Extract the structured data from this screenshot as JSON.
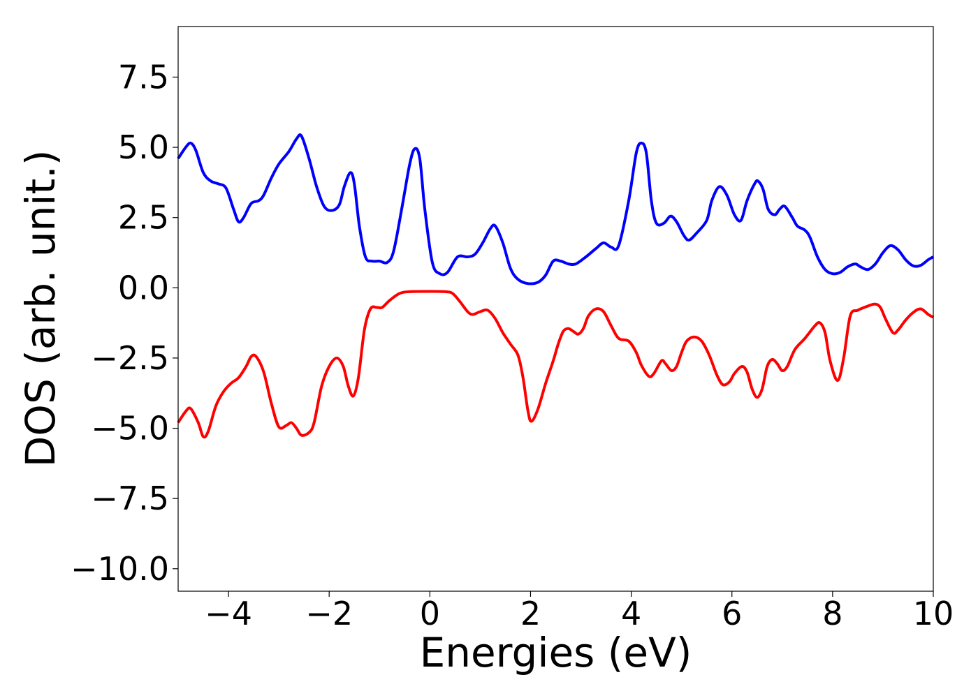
{
  "chart_data": {
    "type": "line",
    "title": "",
    "xlabel": "Energies (eV)",
    "ylabel": "DOS (arb. unit.)",
    "xlim": [
      -5,
      10
    ],
    "ylim": [
      -10.8,
      9.3
    ],
    "xticks": [
      -4,
      -2,
      0,
      2,
      4,
      6,
      8,
      10
    ],
    "xtick_labels": [
      "−4",
      "−2",
      "0",
      "2",
      "4",
      "6",
      "8",
      "10"
    ],
    "yticks": [
      7.5,
      5.0,
      2.5,
      0.0,
      -2.5,
      -5.0,
      -7.5,
      -10.0
    ],
    "ytick_labels": [
      "7.5",
      "5.0",
      "2.5",
      "0.0",
      "−2.5",
      "−5.0",
      "−7.5",
      "−10.0"
    ],
    "grid": false,
    "legend": "none",
    "series": [
      {
        "color": "#0000ff",
        "points": [
          [
            -5.0,
            4.6
          ],
          [
            -4.85,
            5.0
          ],
          [
            -4.75,
            5.15
          ],
          [
            -4.65,
            4.9
          ],
          [
            -4.5,
            4.1
          ],
          [
            -4.35,
            3.8
          ],
          [
            -4.2,
            3.7
          ],
          [
            -4.05,
            3.55
          ],
          [
            -3.9,
            2.8
          ],
          [
            -3.8,
            2.35
          ],
          [
            -3.7,
            2.5
          ],
          [
            -3.55,
            3.0
          ],
          [
            -3.4,
            3.1
          ],
          [
            -3.3,
            3.3
          ],
          [
            -3.15,
            3.9
          ],
          [
            -3.0,
            4.4
          ],
          [
            -2.8,
            4.85
          ],
          [
            -2.65,
            5.3
          ],
          [
            -2.55,
            5.4
          ],
          [
            -2.4,
            4.6
          ],
          [
            -2.25,
            3.6
          ],
          [
            -2.1,
            2.9
          ],
          [
            -1.95,
            2.75
          ],
          [
            -1.8,
            2.95
          ],
          [
            -1.7,
            3.6
          ],
          [
            -1.58,
            4.1
          ],
          [
            -1.5,
            3.7
          ],
          [
            -1.4,
            2.2
          ],
          [
            -1.28,
            1.1
          ],
          [
            -1.15,
            0.95
          ],
          [
            -1.0,
            0.95
          ],
          [
            -0.85,
            0.9
          ],
          [
            -0.72,
            1.3
          ],
          [
            -0.55,
            2.9
          ],
          [
            -0.4,
            4.4
          ],
          [
            -0.3,
            4.95
          ],
          [
            -0.2,
            4.6
          ],
          [
            -0.1,
            2.8
          ],
          [
            0.05,
            0.9
          ],
          [
            0.2,
            0.5
          ],
          [
            0.35,
            0.55
          ],
          [
            0.55,
            1.1
          ],
          [
            0.75,
            1.1
          ],
          [
            0.9,
            1.2
          ],
          [
            1.05,
            1.6
          ],
          [
            1.2,
            2.1
          ],
          [
            1.3,
            2.2
          ],
          [
            1.45,
            1.6
          ],
          [
            1.6,
            0.7
          ],
          [
            1.75,
            0.3
          ],
          [
            1.95,
            0.15
          ],
          [
            2.15,
            0.2
          ],
          [
            2.3,
            0.45
          ],
          [
            2.45,
            0.95
          ],
          [
            2.6,
            0.95
          ],
          [
            2.75,
            0.85
          ],
          [
            2.9,
            0.85
          ],
          [
            3.1,
            1.1
          ],
          [
            3.3,
            1.4
          ],
          [
            3.45,
            1.6
          ],
          [
            3.6,
            1.45
          ],
          [
            3.75,
            1.5
          ],
          [
            3.95,
            3.1
          ],
          [
            4.1,
            4.8
          ],
          [
            4.2,
            5.15
          ],
          [
            4.3,
            4.8
          ],
          [
            4.4,
            3.1
          ],
          [
            4.5,
            2.3
          ],
          [
            4.65,
            2.3
          ],
          [
            4.78,
            2.55
          ],
          [
            4.9,
            2.35
          ],
          [
            5.05,
            1.85
          ],
          [
            5.15,
            1.7
          ],
          [
            5.3,
            1.95
          ],
          [
            5.5,
            2.4
          ],
          [
            5.6,
            3.1
          ],
          [
            5.75,
            3.6
          ],
          [
            5.9,
            3.3
          ],
          [
            6.05,
            2.6
          ],
          [
            6.18,
            2.4
          ],
          [
            6.3,
            3.1
          ],
          [
            6.45,
            3.7
          ],
          [
            6.52,
            3.8
          ],
          [
            6.62,
            3.5
          ],
          [
            6.72,
            2.8
          ],
          [
            6.85,
            2.6
          ],
          [
            6.95,
            2.8
          ],
          [
            7.05,
            2.9
          ],
          [
            7.2,
            2.5
          ],
          [
            7.3,
            2.2
          ],
          [
            7.45,
            2.05
          ],
          [
            7.55,
            1.8
          ],
          [
            7.7,
            1.1
          ],
          [
            7.85,
            0.65
          ],
          [
            8.0,
            0.5
          ],
          [
            8.15,
            0.55
          ],
          [
            8.3,
            0.75
          ],
          [
            8.45,
            0.85
          ],
          [
            8.55,
            0.75
          ],
          [
            8.7,
            0.65
          ],
          [
            8.85,
            0.85
          ],
          [
            9.0,
            1.25
          ],
          [
            9.15,
            1.5
          ],
          [
            9.3,
            1.35
          ],
          [
            9.45,
            1.0
          ],
          [
            9.6,
            0.78
          ],
          [
            9.75,
            0.8
          ],
          [
            9.9,
            1.0
          ],
          [
            10.0,
            1.1
          ]
        ]
      },
      {
        "color": "#ff0000",
        "points": [
          [
            -5.0,
            -4.8
          ],
          [
            -4.85,
            -4.4
          ],
          [
            -4.75,
            -4.3
          ],
          [
            -4.6,
            -4.8
          ],
          [
            -4.5,
            -5.3
          ],
          [
            -4.4,
            -5.1
          ],
          [
            -4.25,
            -4.2
          ],
          [
            -4.1,
            -3.7
          ],
          [
            -3.95,
            -3.4
          ],
          [
            -3.8,
            -3.2
          ],
          [
            -3.65,
            -2.8
          ],
          [
            -3.55,
            -2.45
          ],
          [
            -3.45,
            -2.45
          ],
          [
            -3.3,
            -3.0
          ],
          [
            -3.15,
            -4.1
          ],
          [
            -3.0,
            -4.95
          ],
          [
            -2.85,
            -4.9
          ],
          [
            -2.75,
            -4.8
          ],
          [
            -2.65,
            -5.0
          ],
          [
            -2.55,
            -5.25
          ],
          [
            -2.4,
            -5.15
          ],
          [
            -2.3,
            -4.8
          ],
          [
            -2.15,
            -3.5
          ],
          [
            -2.0,
            -2.8
          ],
          [
            -1.85,
            -2.5
          ],
          [
            -1.72,
            -2.8
          ],
          [
            -1.62,
            -3.5
          ],
          [
            -1.52,
            -3.85
          ],
          [
            -1.42,
            -3.2
          ],
          [
            -1.3,
            -1.5
          ],
          [
            -1.18,
            -0.75
          ],
          [
            -1.05,
            -0.7
          ],
          [
            -0.95,
            -0.7
          ],
          [
            -0.8,
            -0.45
          ],
          [
            -0.6,
            -0.2
          ],
          [
            -0.4,
            -0.14
          ],
          [
            0.0,
            -0.13
          ],
          [
            0.3,
            -0.14
          ],
          [
            0.45,
            -0.2
          ],
          [
            0.6,
            -0.5
          ],
          [
            0.75,
            -0.85
          ],
          [
            0.85,
            -0.95
          ],
          [
            1.0,
            -0.85
          ],
          [
            1.15,
            -0.8
          ],
          [
            1.3,
            -1.1
          ],
          [
            1.45,
            -1.6
          ],
          [
            1.6,
            -2.0
          ],
          [
            1.75,
            -2.4
          ],
          [
            1.85,
            -3.2
          ],
          [
            1.95,
            -4.4
          ],
          [
            2.02,
            -4.75
          ],
          [
            2.15,
            -4.3
          ],
          [
            2.3,
            -3.4
          ],
          [
            2.45,
            -2.6
          ],
          [
            2.55,
            -2.0
          ],
          [
            2.65,
            -1.55
          ],
          [
            2.75,
            -1.45
          ],
          [
            2.85,
            -1.55
          ],
          [
            2.95,
            -1.65
          ],
          [
            3.05,
            -1.45
          ],
          [
            3.15,
            -1.0
          ],
          [
            3.3,
            -0.75
          ],
          [
            3.45,
            -0.85
          ],
          [
            3.6,
            -1.35
          ],
          [
            3.75,
            -1.8
          ],
          [
            3.95,
            -1.9
          ],
          [
            4.1,
            -2.3
          ],
          [
            4.2,
            -2.75
          ],
          [
            4.35,
            -3.15
          ],
          [
            4.45,
            -3.05
          ],
          [
            4.6,
            -2.6
          ],
          [
            4.68,
            -2.7
          ],
          [
            4.8,
            -2.95
          ],
          [
            4.9,
            -2.8
          ],
          [
            5.0,
            -2.3
          ],
          [
            5.1,
            -1.9
          ],
          [
            5.25,
            -1.75
          ],
          [
            5.4,
            -1.9
          ],
          [
            5.55,
            -2.4
          ],
          [
            5.7,
            -3.1
          ],
          [
            5.82,
            -3.45
          ],
          [
            5.95,
            -3.35
          ],
          [
            6.05,
            -3.05
          ],
          [
            6.2,
            -2.8
          ],
          [
            6.3,
            -3.0
          ],
          [
            6.4,
            -3.6
          ],
          [
            6.5,
            -3.9
          ],
          [
            6.6,
            -3.6
          ],
          [
            6.7,
            -2.8
          ],
          [
            6.8,
            -2.55
          ],
          [
            6.9,
            -2.7
          ],
          [
            7.0,
            -2.95
          ],
          [
            7.1,
            -2.8
          ],
          [
            7.25,
            -2.2
          ],
          [
            7.45,
            -1.8
          ],
          [
            7.65,
            -1.35
          ],
          [
            7.75,
            -1.25
          ],
          [
            7.85,
            -1.6
          ],
          [
            7.95,
            -2.6
          ],
          [
            8.1,
            -3.3
          ],
          [
            8.22,
            -2.5
          ],
          [
            8.35,
            -1.0
          ],
          [
            8.5,
            -0.8
          ],
          [
            8.7,
            -0.65
          ],
          [
            8.85,
            -0.58
          ],
          [
            8.95,
            -0.7
          ],
          [
            9.05,
            -1.1
          ],
          [
            9.2,
            -1.6
          ],
          [
            9.3,
            -1.5
          ],
          [
            9.45,
            -1.15
          ],
          [
            9.6,
            -0.88
          ],
          [
            9.75,
            -0.75
          ],
          [
            9.9,
            -0.95
          ],
          [
            10.0,
            -1.05
          ]
        ]
      }
    ]
  }
}
